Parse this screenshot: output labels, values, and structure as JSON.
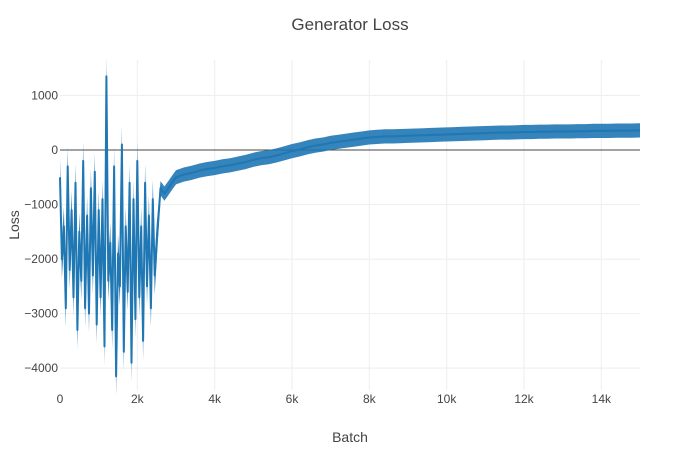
{
  "chart_data": {
    "type": "line",
    "title": "Generator Loss",
    "xlabel": "Batch",
    "ylabel": "Loss",
    "xlim": [
      0,
      15000
    ],
    "ylim": [
      -4400,
      1650
    ],
    "x_ticks": [
      {
        "value": 0,
        "label": "0"
      },
      {
        "value": 2000,
        "label": "2k"
      },
      {
        "value": 4000,
        "label": "4k"
      },
      {
        "value": 6000,
        "label": "6k"
      },
      {
        "value": 8000,
        "label": "8k"
      },
      {
        "value": 10000,
        "label": "10k"
      },
      {
        "value": 12000,
        "label": "12k"
      },
      {
        "value": 14000,
        "label": "14k"
      }
    ],
    "y_ticks": [
      {
        "value": -4000,
        "label": "−4000"
      },
      {
        "value": -3000,
        "label": "−3000"
      },
      {
        "value": -2000,
        "label": "−2000"
      },
      {
        "value": -1000,
        "label": "−1000"
      },
      {
        "value": 0,
        "label": "0"
      },
      {
        "value": 1000,
        "label": "1000"
      }
    ],
    "grid": true,
    "zero_line": true,
    "series": [
      {
        "color": "#1f77b4",
        "x": [
          0,
          50,
          100,
          150,
          200,
          250,
          300,
          350,
          400,
          450,
          500,
          550,
          600,
          650,
          700,
          750,
          800,
          850,
          900,
          950,
          1000,
          1050,
          1100,
          1150,
          1200,
          1250,
          1300,
          1350,
          1400,
          1450,
          1500,
          1550,
          1600,
          1650,
          1700,
          1750,
          1800,
          1850,
          1900,
          1950,
          2000,
          2050,
          2100,
          2150,
          2200,
          2250,
          2300,
          2350,
          2400,
          2450,
          2500,
          2600,
          2700,
          2800,
          2900,
          3000,
          3200,
          3400,
          3600,
          3800,
          4000,
          4200,
          4400,
          4600,
          4800,
          5000,
          5200,
          5400,
          5600,
          5800,
          6000,
          6200,
          6400,
          6600,
          6800,
          7000,
          7200,
          7400,
          7600,
          7800,
          8000,
          8200,
          8400,
          8600,
          8800,
          9000,
          9200,
          9400,
          9600,
          9800,
          10000,
          10200,
          10400,
          10600,
          10800,
          11000,
          11200,
          11400,
          11600,
          11800,
          12000,
          12200,
          12400,
          12600,
          12800,
          13000,
          13200,
          13400,
          13600,
          13800,
          14000,
          14200,
          14400,
          14600,
          14800,
          15000
        ],
        "y": [
          -500,
          -2000,
          -1400,
          -2900,
          -300,
          -2200,
          -1100,
          -2700,
          -600,
          -3300,
          -1500,
          -2400,
          -200,
          -2900,
          -1200,
          -3000,
          -700,
          -2300,
          -400,
          -3200,
          -1100,
          -2700,
          -900,
          -3600,
          1350,
          -2400,
          -1700,
          -3300,
          -300,
          -4150,
          -1900,
          -2500,
          100,
          -3700,
          -1400,
          -2600,
          -600,
          -3900,
          -900,
          -3100,
          -200,
          -2700,
          -1400,
          -3500,
          -600,
          -2500,
          -1200,
          -2900,
          -900,
          -2300,
          -1700,
          -700,
          -800,
          -700,
          -600,
          -500,
          -450,
          -420,
          -380,
          -350,
          -330,
          -300,
          -280,
          -250,
          -220,
          -180,
          -150,
          -130,
          -100,
          -60,
          -20,
          10,
          50,
          80,
          100,
          130,
          150,
          170,
          190,
          210,
          230,
          240,
          250,
          250,
          255,
          260,
          265,
          270,
          275,
          280,
          285,
          290,
          295,
          300,
          305,
          310,
          315,
          320,
          320,
          325,
          330,
          330,
          335,
          335,
          340,
          340,
          340,
          345,
          345,
          350,
          350,
          350,
          355,
          355,
          355,
          360
        ]
      }
    ]
  }
}
